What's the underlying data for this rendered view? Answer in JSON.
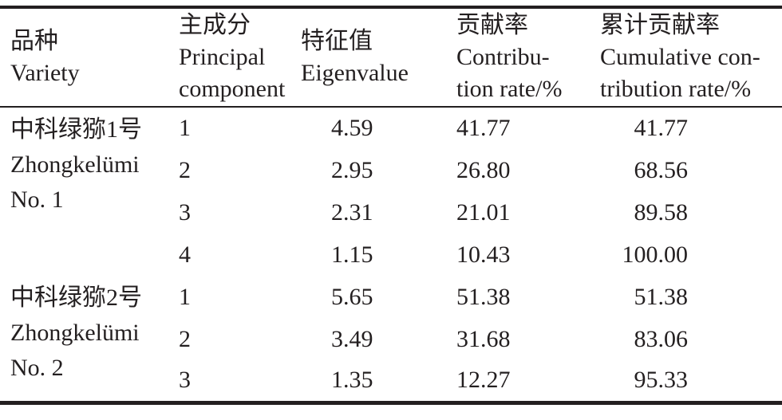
{
  "table": {
    "colors": {
      "text": "#231f20",
      "rule": "#231f20",
      "background": "#ffffff"
    },
    "columns": [
      {
        "zh": "品种",
        "en_lines": [
          "Variety"
        ]
      },
      {
        "zh": "主成分",
        "en_lines": [
          "Principal",
          "component"
        ]
      },
      {
        "zh": "特征值",
        "en_lines": [
          "Eigenvalue"
        ]
      },
      {
        "zh": "贡献率",
        "en_lines": [
          "Contribu-",
          "tion rate/%"
        ]
      },
      {
        "zh": "累计贡献率",
        "en_lines": [
          "Cumulative con-",
          "tribution rate/%"
        ]
      }
    ],
    "groups": [
      {
        "variety_lines": [
          "中科绿猕1号",
          "Zhongkelümi",
          "No. 1"
        ],
        "rows": [
          {
            "pc": "1",
            "eigenvalue": "4.59",
            "contribution": "41.77",
            "cumulative": "41.77"
          },
          {
            "pc": "2",
            "eigenvalue": "2.95",
            "contribution": "26.80",
            "cumulative": "68.56"
          },
          {
            "pc": "3",
            "eigenvalue": "2.31",
            "contribution": "21.01",
            "cumulative": "89.58"
          },
          {
            "pc": "4",
            "eigenvalue": "1.15",
            "contribution": "10.43",
            "cumulative": "100.00"
          }
        ]
      },
      {
        "variety_lines": [
          "中科绿猕2号",
          "Zhongkelümi",
          "No. 2"
        ],
        "rows": [
          {
            "pc": "1",
            "eigenvalue": "5.65",
            "contribution": "51.38",
            "cumulative": "51.38"
          },
          {
            "pc": "2",
            "eigenvalue": "3.49",
            "contribution": "31.68",
            "cumulative": "83.06"
          },
          {
            "pc": "3",
            "eigenvalue": "1.35",
            "contribution": "12.27",
            "cumulative": "95.33"
          }
        ]
      }
    ]
  }
}
